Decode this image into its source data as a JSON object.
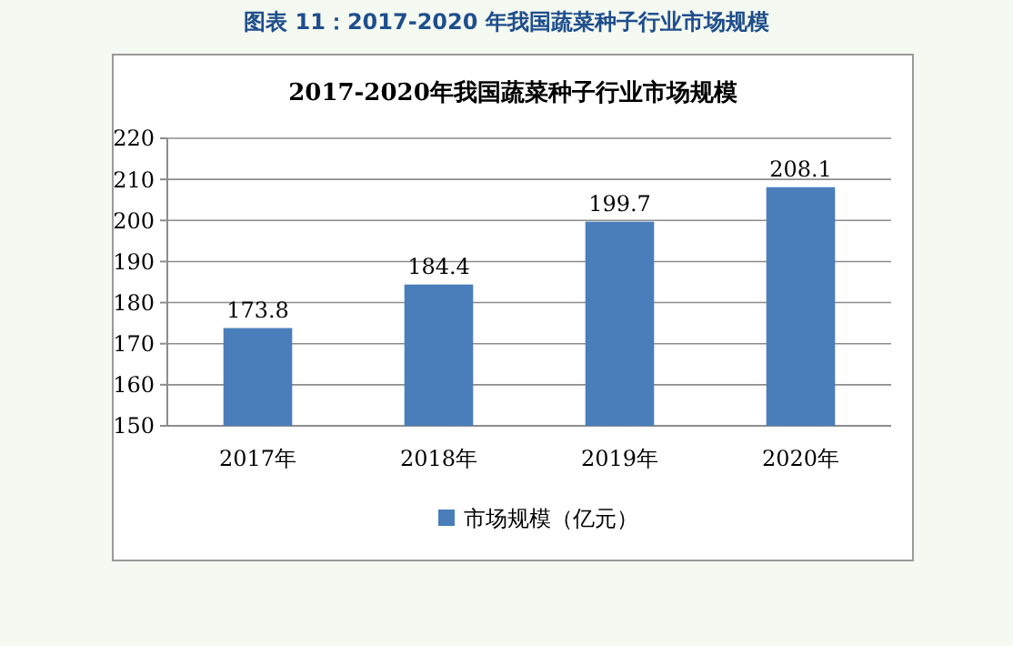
{
  "chart_data": {
    "type": "bar",
    "title": "2017-2020年我国蔬菜种子行业市场规模",
    "annotations": [
      "图表 11：2017-2020 年我国蔬菜种子行业市场规模"
    ],
    "categories": [
      "2017年",
      "2018年",
      "2019年",
      "2020年"
    ],
    "series": [
      {
        "name": "市场规模（亿元）",
        "color": "#4a7ebb",
        "values": [
          173.8,
          184.4,
          199.7,
          208.1
        ]
      }
    ],
    "ylim": [
      150,
      220
    ],
    "yticks": [
      150,
      160,
      170,
      180,
      190,
      200,
      210,
      220
    ],
    "grid": "y",
    "legend": "bottom",
    "data_labels": true
  }
}
